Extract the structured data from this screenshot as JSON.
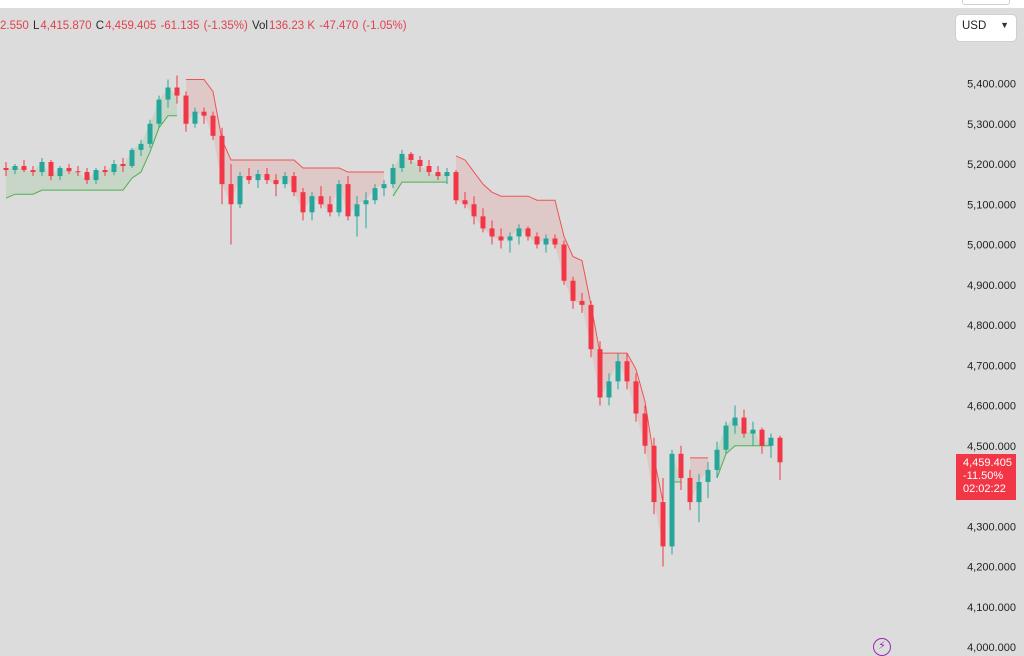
{
  "legend": {
    "high_partial": "2.550",
    "low_key": "L",
    "low": "4,415.870",
    "close_key": "C",
    "close": "4,459.405",
    "change": "-61.135",
    "change_pct": "(-1.35%)",
    "vol_key": "Vol",
    "volume": "136.23 K",
    "vol_change": "-47.470",
    "vol_change_pct": "(-1.05%)"
  },
  "currency_select": {
    "value": "USD",
    "icon": "chevron-down-icon"
  },
  "price_label": {
    "price": "4,459.405",
    "change_pct": "-11.50%",
    "countdown": "02:02:22"
  },
  "bolt_icon": "lightning-icon",
  "colors": {
    "up": "#26a69a",
    "down": "#f23645",
    "supertrend_up": "#4caf50",
    "supertrend_down": "#ef5350",
    "background": "#dcdcdc",
    "axis_text": "#222222"
  },
  "chart_data": {
    "type": "candlestick",
    "y_axis": {
      "ticks": [
        "5,400.000",
        "5,300.000",
        "5,200.000",
        "5,100.000",
        "5,000.000",
        "4,900.000",
        "4,800.000",
        "4,700.000",
        "4,600.000",
        "4,500.000",
        "4,300.000",
        "4,200.000",
        "4,100.000",
        "4,000.000"
      ],
      "tick_values": [
        5400,
        5300,
        5200,
        5100,
        5000,
        4900,
        4800,
        4700,
        4600,
        4500,
        4300,
        4200,
        4100,
        4000
      ],
      "range": [
        4000,
        5500
      ],
      "position": "right"
    },
    "candles": [
      [
        5190,
        5205,
        5170,
        5185
      ],
      [
        5185,
        5200,
        5175,
        5195
      ],
      [
        5195,
        5210,
        5180,
        5185
      ],
      [
        5185,
        5195,
        5170,
        5180
      ],
      [
        5180,
        5215,
        5170,
        5205
      ],
      [
        5205,
        5210,
        5160,
        5170
      ],
      [
        5170,
        5195,
        5160,
        5190
      ],
      [
        5190,
        5200,
        5175,
        5182
      ],
      [
        5182,
        5195,
        5170,
        5180
      ],
      [
        5180,
        5190,
        5150,
        5160
      ],
      [
        5160,
        5190,
        5150,
        5185
      ],
      [
        5185,
        5195,
        5170,
        5180
      ],
      [
        5180,
        5210,
        5172,
        5200
      ],
      [
        5200,
        5215,
        5180,
        5195
      ],
      [
        5195,
        5240,
        5190,
        5235
      ],
      [
        5235,
        5260,
        5220,
        5250
      ],
      [
        5250,
        5310,
        5240,
        5300
      ],
      [
        5300,
        5370,
        5290,
        5360
      ],
      [
        5360,
        5410,
        5340,
        5390
      ],
      [
        5390,
        5420,
        5350,
        5370
      ],
      [
        5370,
        5380,
        5280,
        5300
      ],
      [
        5300,
        5340,
        5290,
        5330
      ],
      [
        5330,
        5340,
        5300,
        5320
      ],
      [
        5320,
        5330,
        5260,
        5270
      ],
      [
        5270,
        5290,
        5100,
        5150
      ],
      [
        5150,
        5200,
        5000,
        5100
      ],
      [
        5100,
        5180,
        5090,
        5170
      ],
      [
        5170,
        5190,
        5150,
        5160
      ],
      [
        5160,
        5185,
        5140,
        5175
      ],
      [
        5175,
        5190,
        5150,
        5160
      ],
      [
        5160,
        5175,
        5120,
        5150
      ],
      [
        5150,
        5180,
        5140,
        5170
      ],
      [
        5170,
        5180,
        5120,
        5130
      ],
      [
        5130,
        5140,
        5060,
        5080
      ],
      [
        5080,
        5130,
        5060,
        5120
      ],
      [
        5120,
        5145,
        5090,
        5100
      ],
      [
        5100,
        5120,
        5070,
        5080
      ],
      [
        5080,
        5160,
        5070,
        5150
      ],
      [
        5150,
        5170,
        5060,
        5070
      ],
      [
        5070,
        5120,
        5020,
        5100
      ],
      [
        5100,
        5130,
        5040,
        5110
      ],
      [
        5110,
        5150,
        5100,
        5140
      ],
      [
        5140,
        5160,
        5120,
        5150
      ],
      [
        5150,
        5200,
        5140,
        5190
      ],
      [
        5190,
        5235,
        5180,
        5225
      ],
      [
        5225,
        5230,
        5200,
        5210
      ],
      [
        5210,
        5220,
        5180,
        5195
      ],
      [
        5195,
        5210,
        5170,
        5180
      ],
      [
        5180,
        5195,
        5160,
        5170
      ],
      [
        5170,
        5190,
        5150,
        5180
      ],
      [
        5180,
        5185,
        5100,
        5110
      ],
      [
        5110,
        5130,
        5090,
        5100
      ],
      [
        5100,
        5120,
        5050,
        5070
      ],
      [
        5070,
        5090,
        5030,
        5040
      ],
      [
        5040,
        5060,
        5000,
        5020
      ],
      [
        5020,
        5040,
        4990,
        5010
      ],
      [
        5010,
        5030,
        4980,
        5020
      ],
      [
        5020,
        5050,
        5000,
        5040
      ],
      [
        5040,
        5045,
        5010,
        5020
      ],
      [
        5020,
        5030,
        4990,
        5000
      ],
      [
        5000,
        5025,
        4980,
        5015
      ],
      [
        5015,
        5025,
        4990,
        5000
      ],
      [
        5000,
        5010,
        4900,
        4910
      ],
      [
        4910,
        4920,
        4840,
        4860
      ],
      [
        4860,
        4880,
        4830,
        4850
      ],
      [
        4850,
        4860,
        4720,
        4740
      ],
      [
        4740,
        4760,
        4600,
        4620
      ],
      [
        4620,
        4680,
        4600,
        4660
      ],
      [
        4660,
        4730,
        4640,
        4710
      ],
      [
        4710,
        4730,
        4640,
        4660
      ],
      [
        4660,
        4680,
        4560,
        4580
      ],
      [
        4580,
        4600,
        4480,
        4500
      ],
      [
        4500,
        4520,
        4330,
        4360
      ],
      [
        4360,
        4420,
        4200,
        4250
      ],
      [
        4250,
        4490,
        4230,
        4480
      ],
      [
        4480,
        4500,
        4390,
        4420
      ],
      [
        4420,
        4440,
        4340,
        4360
      ],
      [
        4360,
        4430,
        4310,
        4410
      ],
      [
        4410,
        4460,
        4370,
        4440
      ],
      [
        4440,
        4510,
        4420,
        4490
      ],
      [
        4490,
        4560,
        4480,
        4550
      ],
      [
        4550,
        4600,
        4530,
        4570
      ],
      [
        4570,
        4590,
        4520,
        4530
      ],
      [
        4530,
        4560,
        4500,
        4540
      ],
      [
        4540,
        4545,
        4480,
        4500
      ],
      [
        4500,
        4530,
        4470,
        4520
      ],
      [
        4520,
        4525,
        4415,
        4459
      ]
    ]
  }
}
